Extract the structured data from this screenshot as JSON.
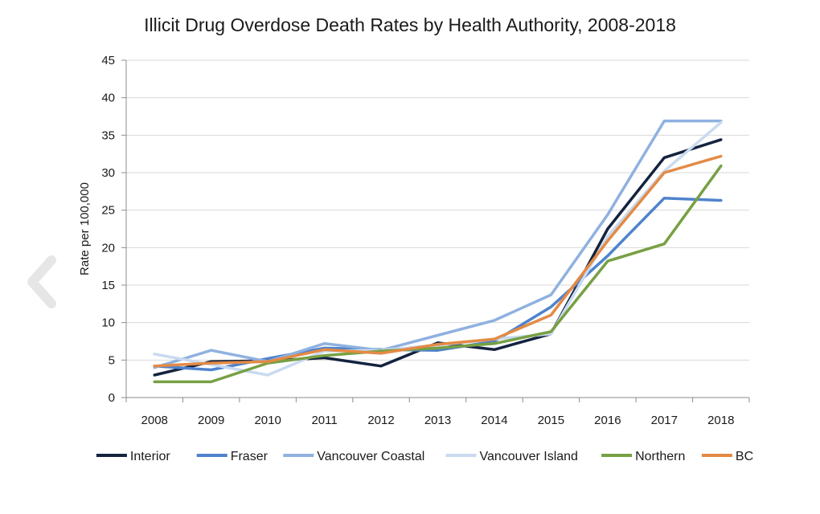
{
  "chart_data": {
    "type": "line",
    "title": "Illicit Drug Overdose Death Rates by Health Authority, 2008-2018",
    "xlabel": "",
    "ylabel": "Rate per 100,000",
    "ylim": [
      0,
      45
    ],
    "yticks": [
      0,
      5,
      10,
      15,
      20,
      25,
      30,
      35,
      40,
      45
    ],
    "grid": true,
    "legend_position": "bottom",
    "categories": [
      "2008",
      "2009",
      "2010",
      "2011",
      "2012",
      "2013",
      "2014",
      "2015",
      "2016",
      "2017",
      "2018"
    ],
    "series": [
      {
        "name": "Interior",
        "color": "#14233f",
        "values": [
          3.0,
          4.8,
          4.9,
          5.3,
          4.2,
          7.3,
          6.4,
          8.5,
          22.5,
          32.0,
          34.4
        ]
      },
      {
        "name": "Fraser",
        "color": "#4f83cc",
        "values": [
          4.2,
          3.7,
          5.2,
          6.6,
          6.4,
          6.3,
          7.5,
          12.1,
          18.9,
          26.6,
          26.3
        ]
      },
      {
        "name": "Vancouver Coastal",
        "color": "#8fb1e0",
        "values": [
          4.0,
          6.3,
          4.8,
          7.2,
          6.3,
          8.3,
          10.3,
          13.7,
          24.4,
          36.9,
          36.9
        ]
      },
      {
        "name": "Vancouver Island",
        "color": "#c9daf0",
        "values": [
          5.8,
          4.4,
          3.0,
          6.2,
          6.3,
          7.0,
          7.8,
          8.5,
          21.5,
          30.2,
          36.7
        ]
      },
      {
        "name": "Northern",
        "color": "#77a043",
        "values": [
          2.1,
          2.1,
          4.6,
          5.6,
          6.2,
          6.6,
          7.2,
          8.8,
          18.2,
          20.5,
          30.9
        ]
      },
      {
        "name": "BC",
        "color": "#e48a45",
        "values": [
          4.2,
          4.6,
          4.8,
          6.4,
          5.9,
          7.1,
          7.8,
          11.0,
          20.9,
          30.0,
          32.2
        ]
      }
    ]
  }
}
